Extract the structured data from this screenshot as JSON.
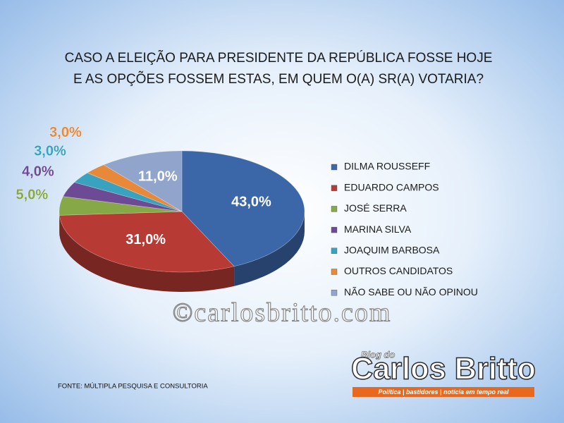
{
  "chart_data": {
    "type": "pie",
    "title": [
      "CASO A ELEIÇÃO PARA PRESIDENTE DA REPÚBLICA FOSSE HOJE",
      "E AS OPÇÕES FOSSEM ESTAS, EM QUEM O(A) SR(A) VOTARIA?"
    ],
    "categories": [
      "DILMA ROUSSEFF",
      "EDUARDO CAMPOS",
      "JOSÉ SERRA",
      "MARINA SILVA",
      "JOAQUIM BARBOSA",
      "OUTROS CANDIDATOS",
      "NÃO SABE OU NÃO OPINOU"
    ],
    "values": [
      43,
      31,
      5,
      4,
      3,
      3,
      11
    ],
    "value_labels": [
      "43,0%",
      "31,0%",
      "5,0%",
      "4,0%",
      "3,0%",
      "3,0%",
      "11,0%"
    ],
    "colors": [
      "#3b66a8",
      "#b83a35",
      "#87a846",
      "#6d4a94",
      "#39a2be",
      "#e8893a",
      "#90a4cc"
    ],
    "legend": "right",
    "watermark": "©carlosbritto.com",
    "source": "FONTE: MÚLTIPLA PESQUISA E CONSULTORIA",
    "logo": {
      "small": "Blog do",
      "name": "Carlos Britto",
      "tagline": "Política | bastidores | notícia em tempo real"
    }
  }
}
